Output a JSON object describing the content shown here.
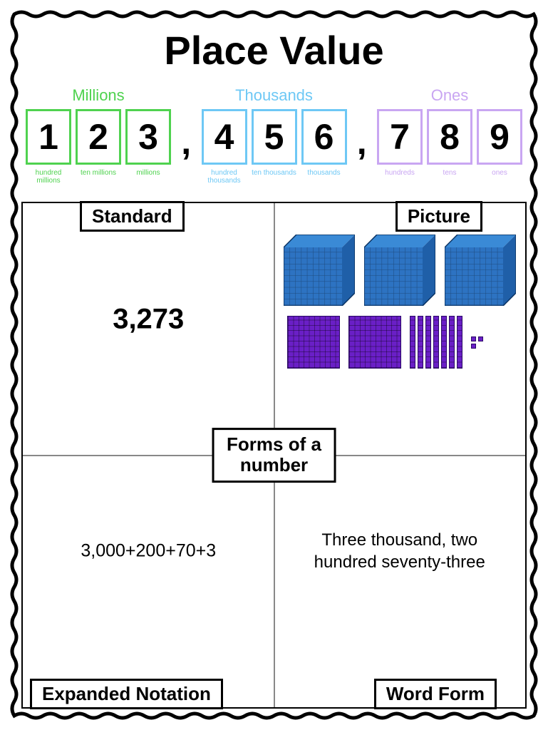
{
  "title": "Place Value",
  "groups": [
    {
      "label": "Millions",
      "color": "#4fd24f",
      "digits": [
        "1",
        "2",
        "3"
      ],
      "sublabels": [
        "hundred millions",
        "ten millions",
        "millions"
      ]
    },
    {
      "label": "Thousands",
      "color": "#6ec8f5",
      "digits": [
        "4",
        "5",
        "6"
      ],
      "sublabels": [
        "hundred thousands",
        "ten thousands",
        "thousands"
      ]
    },
    {
      "label": "Ones",
      "color": "#c9a6f2",
      "digits": [
        "7",
        "8",
        "9"
      ],
      "sublabels": [
        "hundreds",
        "tens",
        "ones"
      ]
    }
  ],
  "comma": ",",
  "forms": {
    "center_label_line1": "Forms of a",
    "center_label_line2": "number",
    "standard": {
      "label": "Standard",
      "value": "3,273"
    },
    "picture": {
      "label": "Picture",
      "thousands_cubes": 3,
      "hundreds_flats": 2,
      "tens_rods": 7,
      "ones_units": 3,
      "cube_color_top": "#3a8ad6",
      "cube_color_left": "#1f5fa8",
      "cube_color_right": "#2d73c2",
      "flat_color": "#6a1fc7"
    },
    "expanded": {
      "label": "Expanded Notation",
      "value": "3,000+200+70+3"
    },
    "word": {
      "label": "Word Form",
      "value": "Three thousand, two hundred seventy-three"
    }
  },
  "style": {
    "title_fontsize": 56,
    "digit_fontsize": 50,
    "wavy_stroke": "#000000"
  }
}
